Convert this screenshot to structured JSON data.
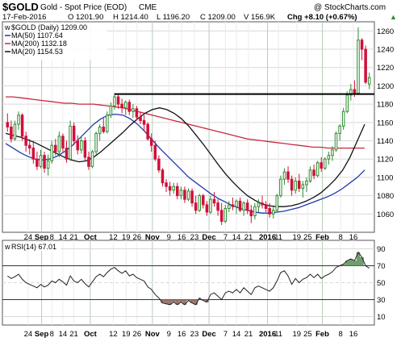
{
  "header": {
    "symbol": "$GOLD",
    "description": "Gold - Spot Price (EOD)",
    "exchange": "CME",
    "watermark": "@ StockCharts.com",
    "date": "17-Feb-2016",
    "open": "O 1201.90",
    "high": "H 1214.40",
    "low": "L 1196.20",
    "close": "C 1209.00",
    "volume": "V 156.9K",
    "change": "Chg +8.10 (+0.67%)",
    "change_arrow": "▲"
  },
  "legend": {
    "main_label": "$GOLD (Daily) 1209.00",
    "ma50": "MA(50) 1107.64",
    "ma200": "MA(200) 1132.18",
    "ma20": "MA(20) 1154.53"
  },
  "rsi_label": "RSI(14) 67.01",
  "colors": {
    "up": "#2e8b2e",
    "down": "#d0103a",
    "ma50": "#1f3aa8",
    "ma200": "#c8283c",
    "ma20": "#111111",
    "rsi": "#222222",
    "rsi_fill": "#6e9e6e",
    "rsi_fill_low": "#9a7a6e",
    "grid": "#d8d8d8",
    "vgrid": "#cfe0cf"
  },
  "chart_data": {
    "type": "candlestick",
    "price_axis": {
      "min": 1040,
      "max": 1270,
      "ticks": [
        1060,
        1080,
        1100,
        1120,
        1140,
        1160,
        1180,
        1200,
        1220,
        1240,
        1260
      ]
    },
    "x_ticks": [
      "24",
      "Sep",
      "8",
      "14",
      "21",
      "Oct",
      "12",
      "19",
      "26",
      "Nov",
      "9",
      "16",
      "23",
      "Dec",
      "7",
      "14",
      "21",
      "2016",
      "11",
      "19",
      "25",
      "Feb",
      "8",
      "16"
    ],
    "horizontal_line": 1191,
    "ohlc": [
      [
        1160,
        1170,
        1150,
        1155
      ],
      [
        1155,
        1162,
        1138,
        1142
      ],
      [
        1142,
        1162,
        1140,
        1158
      ],
      [
        1158,
        1172,
        1152,
        1168
      ],
      [
        1168,
        1170,
        1140,
        1145
      ],
      [
        1145,
        1150,
        1128,
        1135
      ],
      [
        1135,
        1142,
        1125,
        1132
      ],
      [
        1132,
        1140,
        1115,
        1120
      ],
      [
        1120,
        1128,
        1108,
        1112
      ],
      [
        1112,
        1130,
        1110,
        1124
      ],
      [
        1124,
        1128,
        1105,
        1110
      ],
      [
        1110,
        1125,
        1102,
        1118
      ],
      [
        1118,
        1140,
        1115,
        1135
      ],
      [
        1135,
        1142,
        1124,
        1128
      ],
      [
        1128,
        1150,
        1122,
        1145
      ],
      [
        1145,
        1148,
        1128,
        1132
      ],
      [
        1132,
        1140,
        1116,
        1120
      ],
      [
        1120,
        1162,
        1118,
        1156
      ],
      [
        1156,
        1160,
        1135,
        1140
      ],
      [
        1140,
        1146,
        1125,
        1130
      ],
      [
        1130,
        1145,
        1126,
        1140
      ],
      [
        1140,
        1144,
        1118,
        1122
      ],
      [
        1122,
        1128,
        1108,
        1112
      ],
      [
        1112,
        1130,
        1110,
        1128
      ],
      [
        1128,
        1150,
        1125,
        1148
      ],
      [
        1148,
        1158,
        1140,
        1155
      ],
      [
        1155,
        1165,
        1148,
        1150
      ],
      [
        1150,
        1172,
        1148,
        1168
      ],
      [
        1168,
        1182,
        1165,
        1178
      ],
      [
        1178,
        1192,
        1174,
        1188
      ],
      [
        1188,
        1190,
        1175,
        1180
      ],
      [
        1180,
        1186,
        1170,
        1176
      ],
      [
        1176,
        1184,
        1168,
        1182
      ],
      [
        1182,
        1185,
        1168,
        1172
      ],
      [
        1172,
        1180,
        1165,
        1175
      ],
      [
        1175,
        1178,
        1162,
        1166
      ],
      [
        1166,
        1172,
        1158,
        1162
      ],
      [
        1162,
        1168,
        1150,
        1158
      ],
      [
        1158,
        1160,
        1140,
        1142
      ],
      [
        1142,
        1148,
        1128,
        1135
      ],
      [
        1135,
        1140,
        1118,
        1120
      ],
      [
        1120,
        1124,
        1105,
        1108
      ],
      [
        1108,
        1110,
        1090,
        1094
      ],
      [
        1094,
        1098,
        1084,
        1090
      ],
      [
        1090,
        1095,
        1080,
        1086
      ],
      [
        1086,
        1094,
        1082,
        1090
      ],
      [
        1090,
        1094,
        1076,
        1080
      ],
      [
        1080,
        1090,
        1076,
        1086
      ],
      [
        1086,
        1090,
        1072,
        1076
      ],
      [
        1076,
        1088,
        1074,
        1085
      ],
      [
        1085,
        1088,
        1068,
        1072
      ],
      [
        1072,
        1080,
        1060,
        1064
      ],
      [
        1064,
        1082,
        1062,
        1080
      ],
      [
        1080,
        1082,
        1066,
        1070
      ],
      [
        1070,
        1074,
        1058,
        1062
      ],
      [
        1062,
        1080,
        1060,
        1076
      ],
      [
        1076,
        1084,
        1068,
        1072
      ],
      [
        1072,
        1076,
        1058,
        1064
      ],
      [
        1064,
        1072,
        1048,
        1052
      ],
      [
        1052,
        1070,
        1050,
        1066
      ],
      [
        1066,
        1074,
        1062,
        1070
      ],
      [
        1070,
        1078,
        1064,
        1068
      ],
      [
        1068,
        1076,
        1060,
        1074
      ],
      [
        1074,
        1078,
        1062,
        1064
      ],
      [
        1064,
        1074,
        1058,
        1072
      ],
      [
        1072,
        1076,
        1060,
        1064
      ],
      [
        1064,
        1070,
        1050,
        1058
      ],
      [
        1058,
        1072,
        1054,
        1068
      ],
      [
        1068,
        1076,
        1062,
        1072
      ],
      [
        1072,
        1080,
        1066,
        1070
      ],
      [
        1070,
        1074,
        1062,
        1066
      ],
      [
        1066,
        1072,
        1056,
        1060
      ],
      [
        1060,
        1068,
        1055,
        1064
      ],
      [
        1064,
        1082,
        1062,
        1080
      ],
      [
        1080,
        1102,
        1078,
        1098
      ],
      [
        1098,
        1110,
        1092,
        1106
      ],
      [
        1106,
        1112,
        1094,
        1098
      ],
      [
        1098,
        1102,
        1080,
        1086
      ],
      [
        1086,
        1100,
        1082,
        1096
      ],
      [
        1096,
        1104,
        1084,
        1088
      ],
      [
        1088,
        1096,
        1078,
        1092
      ],
      [
        1092,
        1100,
        1084,
        1096
      ],
      [
        1096,
        1112,
        1094,
        1108
      ],
      [
        1108,
        1114,
        1098,
        1102
      ],
      [
        1102,
        1118,
        1100,
        1116
      ],
      [
        1116,
        1122,
        1106,
        1110
      ],
      [
        1110,
        1122,
        1108,
        1120
      ],
      [
        1120,
        1128,
        1114,
        1124
      ],
      [
        1124,
        1134,
        1118,
        1130
      ],
      [
        1130,
        1150,
        1128,
        1148
      ],
      [
        1148,
        1158,
        1140,
        1156
      ],
      [
        1156,
        1176,
        1152,
        1172
      ],
      [
        1172,
        1194,
        1170,
        1190
      ],
      [
        1190,
        1202,
        1184,
        1196
      ],
      [
        1196,
        1206,
        1188,
        1192
      ],
      [
        1192,
        1264,
        1190,
        1250
      ],
      [
        1250,
        1252,
        1228,
        1240
      ],
      [
        1240,
        1244,
        1202,
        1204
      ],
      [
        1201.9,
        1214.4,
        1196.2,
        1209
      ]
    ],
    "ma20": [
      1148,
      1146,
      1144,
      1141,
      1138,
      1134,
      1130,
      1126,
      1122,
      1119,
      1117,
      1118,
      1122,
      1128,
      1135,
      1142,
      1149,
      1157,
      1164,
      1170,
      1174,
      1176,
      1174,
      1170,
      1164,
      1156,
      1146,
      1136,
      1125,
      1114,
      1104,
      1095,
      1087,
      1080,
      1075,
      1071,
      1069,
      1068,
      1068,
      1069,
      1071,
      1074,
      1078,
      1083,
      1090,
      1098,
      1108,
      1122,
      1140,
      1158
    ],
    "ma50": [
      1137,
      1132,
      1127,
      1123,
      1120,
      1119,
      1120,
      1123,
      1128,
      1134,
      1142,
      1150,
      1158,
      1164,
      1168,
      1169,
      1168,
      1164,
      1158,
      1150,
      1141,
      1132,
      1124,
      1116,
      1108,
      1100,
      1094,
      1088,
      1082,
      1077,
      1073,
      1069,
      1066,
      1064,
      1062,
      1061,
      1061,
      1062,
      1063,
      1065,
      1067,
      1070,
      1073,
      1076,
      1079,
      1083,
      1088,
      1094,
      1100,
      1108
    ],
    "ma200": [
      1188,
      1188,
      1187,
      1186,
      1185,
      1184,
      1183,
      1182,
      1181,
      1181,
      1180,
      1180,
      1180,
      1179,
      1178,
      1177,
      1176,
      1174,
      1172,
      1170,
      1168,
      1166,
      1164,
      1162,
      1160,
      1158,
      1156,
      1154,
      1152,
      1150,
      1148,
      1146,
      1144,
      1142,
      1141,
      1140,
      1139,
      1138,
      1137,
      1136,
      1135,
      1134,
      1133,
      1133,
      1132,
      1132,
      1132,
      1132,
      1132,
      1132
    ],
    "rsi": {
      "ticks": [
        10,
        30,
        50,
        70,
        90
      ],
      "labels": [
        "90",
        "70",
        "50",
        "30",
        "10"
      ],
      "overbought": 70,
      "oversold": 30,
      "values": [
        58,
        55,
        57,
        60,
        54,
        50,
        48,
        46,
        44,
        48,
        45,
        47,
        52,
        50,
        54,
        51,
        47,
        58,
        52,
        50,
        54,
        49,
        45,
        51,
        57,
        60,
        57,
        62,
        66,
        68,
        64,
        61,
        64,
        58,
        60,
        56,
        54,
        52,
        45,
        42,
        36,
        32,
        26,
        25,
        24,
        27,
        24,
        27,
        24,
        29,
        26,
        24,
        32,
        29,
        27,
        36,
        38,
        34,
        30,
        38,
        40,
        38,
        42,
        38,
        44,
        40,
        36,
        44,
        46,
        44,
        42,
        40,
        44,
        52,
        62,
        64,
        58,
        48,
        55,
        50,
        54,
        56,
        60,
        56,
        60,
        55,
        58,
        60,
        63,
        68,
        70,
        72,
        76,
        78,
        76,
        86,
        80,
        70,
        67
      ]
    }
  }
}
